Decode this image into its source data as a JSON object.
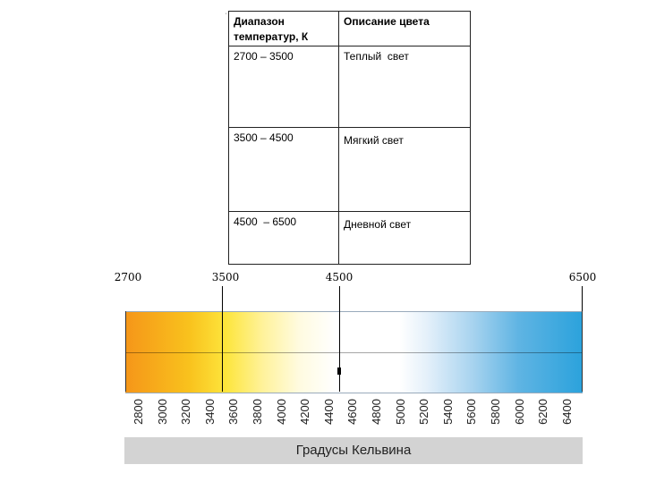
{
  "table": {
    "header": [
      "Диапазон температур, К",
      "Описание цвета"
    ],
    "rows": [
      {
        "range": "2700 – 3500",
        "description": "Теплый  свет"
      },
      {
        "range": "3500 – 4500",
        "description": "Мягкий свет"
      },
      {
        "range": "4500  – 6500",
        "description": "Дневной свет"
      }
    ]
  },
  "scale": {
    "markers": [
      "2700",
      "3500",
      "4500",
      "6500"
    ],
    "ticks": [
      "2800",
      "3000",
      "3200",
      "3400",
      "3600",
      "3800",
      "4000",
      "4200",
      "4400",
      "4600",
      "4800",
      "5000",
      "5200",
      "5400",
      "5600",
      "5800",
      "6000",
      "6200",
      "6400"
    ],
    "range": [
      2700,
      6500
    ],
    "caption": "Градусы Кельвина",
    "colors": {
      "warm": "#f59619",
      "neutral": "#ffffff",
      "cool": "#2ba2dc"
    }
  }
}
